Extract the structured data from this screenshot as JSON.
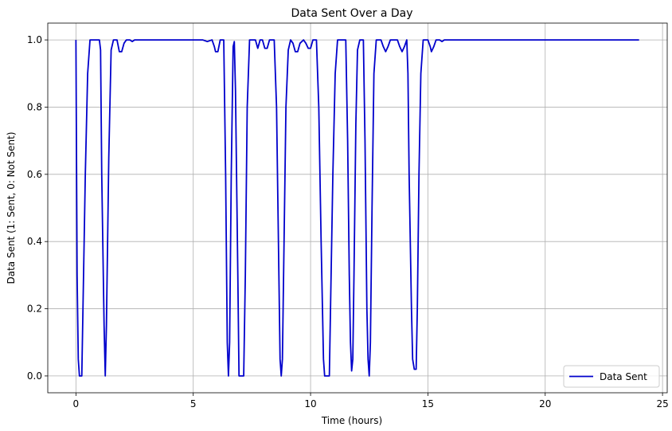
{
  "chart_data": {
    "type": "line",
    "title": "Data Sent Over a Day",
    "xlabel": "Time (hours)",
    "ylabel": "Data Sent (1: Sent, 0: Not Sent)",
    "xlim": [
      -1.2,
      25.2
    ],
    "ylim": [
      -0.05,
      1.05
    ],
    "xticks": [
      0,
      5,
      10,
      15,
      20,
      25
    ],
    "yticks": [
      0.0,
      0.2,
      0.4,
      0.6,
      0.8,
      1.0
    ],
    "xtick_labels": [
      "0",
      "5",
      "10",
      "15",
      "20",
      "25"
    ],
    "ytick_labels": [
      "0.0",
      "0.2",
      "0.4",
      "0.6",
      "0.8",
      "1.0"
    ],
    "grid": true,
    "legend_position": "lower-right",
    "series": [
      {
        "name": "Data Sent",
        "color": "#0000cc",
        "points": [
          [
            0.0,
            1.0
          ],
          [
            0.05,
            0.3
          ],
          [
            0.1,
            0.05
          ],
          [
            0.15,
            0.0
          ],
          [
            0.25,
            0.0
          ],
          [
            0.3,
            0.2
          ],
          [
            0.4,
            0.6
          ],
          [
            0.5,
            0.9
          ],
          [
            0.6,
            1.0
          ],
          [
            1.0,
            1.0
          ],
          [
            1.05,
            0.97
          ],
          [
            1.1,
            0.6
          ],
          [
            1.2,
            0.15
          ],
          [
            1.25,
            0.0
          ],
          [
            1.3,
            0.15
          ],
          [
            1.4,
            0.65
          ],
          [
            1.5,
            0.97
          ],
          [
            1.6,
            1.0
          ],
          [
            1.75,
            1.0
          ],
          [
            1.85,
            0.965
          ],
          [
            1.95,
            0.965
          ],
          [
            2.05,
            0.99
          ],
          [
            2.15,
            1.0
          ],
          [
            2.3,
            1.0
          ],
          [
            2.4,
            0.995
          ],
          [
            2.5,
            1.0
          ],
          [
            5.4,
            1.0
          ],
          [
            5.6,
            0.995
          ],
          [
            5.8,
            1.0
          ],
          [
            5.9,
            0.98
          ],
          [
            5.95,
            0.965
          ],
          [
            6.05,
            0.965
          ],
          [
            6.15,
            1.0
          ],
          [
            6.3,
            1.0
          ],
          [
            6.38,
            0.6
          ],
          [
            6.45,
            0.1
          ],
          [
            6.5,
            0.0
          ],
          [
            6.55,
            0.1
          ],
          [
            6.62,
            0.6
          ],
          [
            6.7,
            0.98
          ],
          [
            6.75,
            0.995
          ],
          [
            6.8,
            0.85
          ],
          [
            6.9,
            0.3
          ],
          [
            6.95,
            0.0
          ],
          [
            7.15,
            0.0
          ],
          [
            7.22,
            0.3
          ],
          [
            7.3,
            0.8
          ],
          [
            7.4,
            1.0
          ],
          [
            7.65,
            1.0
          ],
          [
            7.75,
            0.975
          ],
          [
            7.85,
            1.0
          ],
          [
            7.95,
            1.0
          ],
          [
            8.05,
            0.975
          ],
          [
            8.15,
            0.975
          ],
          [
            8.25,
            1.0
          ],
          [
            8.45,
            1.0
          ],
          [
            8.55,
            0.8
          ],
          [
            8.65,
            0.3
          ],
          [
            8.7,
            0.05
          ],
          [
            8.75,
            0.0
          ],
          [
            8.8,
            0.05
          ],
          [
            8.85,
            0.3
          ],
          [
            8.95,
            0.8
          ],
          [
            9.05,
            0.97
          ],
          [
            9.15,
            1.0
          ],
          [
            9.25,
            0.99
          ],
          [
            9.35,
            0.965
          ],
          [
            9.45,
            0.965
          ],
          [
            9.55,
            0.99
          ],
          [
            9.7,
            1.0
          ],
          [
            9.8,
            0.99
          ],
          [
            9.9,
            0.975
          ],
          [
            10.0,
            0.975
          ],
          [
            10.1,
            1.0
          ],
          [
            10.25,
            1.0
          ],
          [
            10.35,
            0.8
          ],
          [
            10.45,
            0.4
          ],
          [
            10.55,
            0.05
          ],
          [
            10.6,
            0.0
          ],
          [
            10.8,
            0.0
          ],
          [
            10.85,
            0.2
          ],
          [
            10.95,
            0.6
          ],
          [
            11.05,
            0.9
          ],
          [
            11.15,
            1.0
          ],
          [
            11.5,
            1.0
          ],
          [
            11.58,
            0.7
          ],
          [
            11.65,
            0.3
          ],
          [
            11.7,
            0.1
          ],
          [
            11.75,
            0.015
          ],
          [
            11.8,
            0.05
          ],
          [
            11.85,
            0.3
          ],
          [
            11.93,
            0.75
          ],
          [
            12.0,
            0.97
          ],
          [
            12.1,
            1.0
          ],
          [
            12.25,
            1.0
          ],
          [
            12.32,
            0.7
          ],
          [
            12.4,
            0.2
          ],
          [
            12.45,
            0.05
          ],
          [
            12.5,
            0.0
          ],
          [
            12.55,
            0.1
          ],
          [
            12.62,
            0.5
          ],
          [
            12.7,
            0.9
          ],
          [
            12.8,
            1.0
          ],
          [
            13.0,
            1.0
          ],
          [
            13.1,
            0.98
          ],
          [
            13.2,
            0.965
          ],
          [
            13.3,
            0.98
          ],
          [
            13.4,
            1.0
          ],
          [
            13.7,
            1.0
          ],
          [
            13.8,
            0.98
          ],
          [
            13.9,
            0.965
          ],
          [
            14.0,
            0.98
          ],
          [
            14.1,
            1.0
          ],
          [
            14.15,
            0.9
          ],
          [
            14.2,
            0.6
          ],
          [
            14.3,
            0.2
          ],
          [
            14.35,
            0.05
          ],
          [
            14.42,
            0.02
          ],
          [
            14.5,
            0.02
          ],
          [
            14.55,
            0.2
          ],
          [
            14.62,
            0.6
          ],
          [
            14.7,
            0.9
          ],
          [
            14.8,
            1.0
          ],
          [
            15.0,
            1.0
          ],
          [
            15.1,
            0.98
          ],
          [
            15.15,
            0.965
          ],
          [
            15.25,
            0.98
          ],
          [
            15.35,
            1.0
          ],
          [
            15.5,
            1.0
          ],
          [
            15.6,
            0.995
          ],
          [
            15.7,
            1.0
          ],
          [
            24.0,
            1.0
          ]
        ]
      }
    ]
  }
}
